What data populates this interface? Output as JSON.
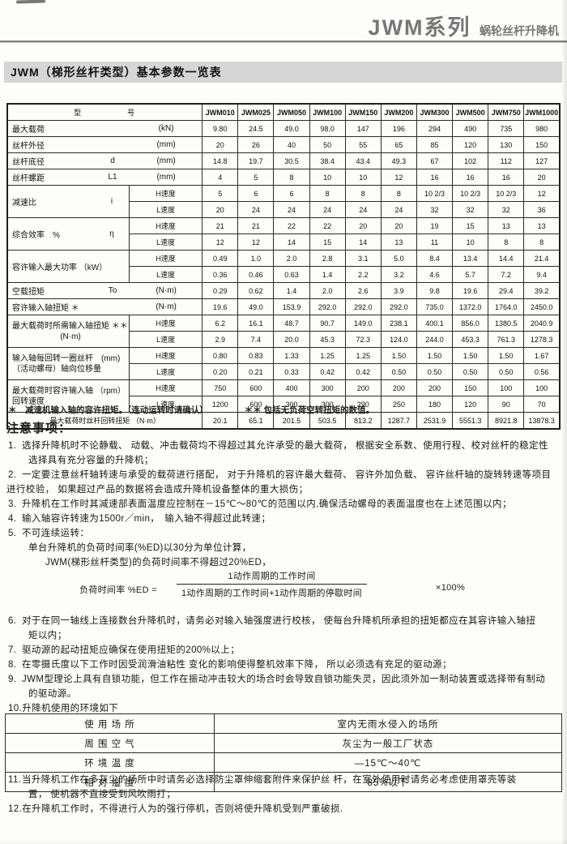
{
  "header": {
    "series": "JWM系列",
    "subtitle": "蜗轮丝杆升降机"
  },
  "section": {
    "title": "JWM（梯形丝杆类型）基本参数一览表"
  },
  "table": {
    "header_label": "型　　　　　号",
    "models": [
      "JWM010",
      "JWM025",
      "JWM050",
      "JWM100",
      "JWM150",
      "JWM200",
      "JWM300",
      "JWM500",
      "JWM750",
      "JWM1000"
    ],
    "speed_h": "H速度",
    "speed_l": "L速度",
    "rows": [
      {
        "type": "single",
        "label": "最大载荷",
        "sym": "",
        "unit": "(kN)",
        "values": [
          "9.80",
          "24.5",
          "49.0",
          "98.0",
          "147",
          "196",
          "294",
          "490",
          "735",
          "980"
        ]
      },
      {
        "type": "single",
        "label": "丝杆外径",
        "sym": "",
        "unit": "(mm)",
        "values": [
          "20",
          "26",
          "40",
          "50",
          "55",
          "65",
          "85",
          "120",
          "130",
          "150"
        ]
      },
      {
        "type": "single",
        "label": "丝杆底径",
        "sym": "d",
        "unit": "(mm)",
        "values": [
          "14.8",
          "19.7",
          "30.5",
          "38.4",
          "43.4",
          "49.3",
          "67",
          "102",
          "112",
          "127"
        ]
      },
      {
        "type": "single",
        "label": "丝杆螺距",
        "sym": "L1",
        "unit": "(mm)",
        "values": [
          "4",
          "5",
          "8",
          "10",
          "10",
          "12",
          "16",
          "16",
          "16",
          "20"
        ]
      },
      {
        "type": "hl",
        "label": "减速比",
        "sym": "i",
        "h": [
          "5",
          "6",
          "6",
          "8",
          "8",
          "8",
          "10 2/3",
          "10 2/3",
          "10 2/3",
          "12"
        ],
        "l": [
          "20",
          "24",
          "24",
          "24",
          "24",
          "24",
          "32",
          "32",
          "32",
          "36"
        ]
      },
      {
        "type": "hl",
        "label": "综合效率　%",
        "sym": "η",
        "h": [
          "21",
          "21",
          "22",
          "22",
          "20",
          "20",
          "19",
          "15",
          "13",
          "13"
        ],
        "l": [
          "12",
          "12",
          "14",
          "15",
          "14",
          "13",
          "11",
          "10",
          "8",
          "8"
        ]
      },
      {
        "type": "hl",
        "label": "容许输入最大功率 （kW）",
        "sym": "",
        "h": [
          "0.49",
          "1.0",
          "2.0",
          "2.8",
          "3.1",
          "5.0",
          "8.4",
          "13.4",
          "14.4",
          "21.4"
        ],
        "l": [
          "0.36",
          "0.46",
          "0.63",
          "1.4",
          "2.2",
          "3.2",
          "4.6",
          "5.7",
          "7.2",
          "9.4"
        ]
      },
      {
        "type": "single",
        "label": "空载扭矩",
        "sym": "To",
        "unit": "(N·m)",
        "values": [
          "0.29",
          "0.62",
          "1.4",
          "2.0",
          "2.6",
          "3.9",
          "9.8",
          "19.6",
          "29.4",
          "39.2"
        ]
      },
      {
        "type": "single",
        "label": "容许输入轴扭矩 ＊",
        "sym": "",
        "unit": "(N·m)",
        "values": [
          "19.6",
          "49.0",
          "153.9",
          "292.0",
          "292.0",
          "292.0",
          "735.0",
          "1372.0",
          "1764.0",
          "2450.0"
        ]
      },
      {
        "type": "hl2",
        "label1": "最大载荷时所需输入轴扭矩 ＊＊",
        "label2": "(N·m)",
        "l2center": true,
        "h": [
          "6.2",
          "16.1",
          "48.7",
          "90.7",
          "149.0",
          "238.1",
          "400.1",
          "856.0",
          "1380.5",
          "2040.9"
        ],
        "l": [
          "2.9",
          "7.4",
          "20.0",
          "45.3",
          "72.3",
          "124.0",
          "244.0",
          "453.3",
          "761.3",
          "1278.3"
        ]
      },
      {
        "type": "hl2",
        "label1": "输入轴每回转一圈丝杆　(mm)",
        "label2": "（活动螺母）轴向位移量",
        "l2center": false,
        "h": [
          "0.80",
          "0.83",
          "1.33",
          "1.25",
          "1.25",
          "1.50",
          "1.50",
          "1.50",
          "1.50",
          "1.67"
        ],
        "l": [
          "0.20",
          "0.21",
          "0.33",
          "0.42",
          "0.42",
          "0.50",
          "0.50",
          "0.50",
          "0.50",
          "0.56"
        ]
      },
      {
        "type": "hl2",
        "label1": "最大载荷时容许输入轴 （rpm）",
        "label2": "回转速度",
        "l2center": false,
        "h": [
          "750",
          "600",
          "400",
          "300",
          "200",
          "200",
          "200",
          "150",
          "100",
          "100"
        ],
        "l": [
          "1200",
          "600",
          "300",
          "300",
          "290",
          "250",
          "180",
          "120",
          "90",
          "70"
        ]
      },
      {
        "type": "full",
        "label": "最大载荷时丝杆回转扭矩 （N·m）",
        "values": [
          "20.1",
          "65.1",
          "201.5",
          "503.5",
          "813.2",
          "1287.7",
          "2531.9",
          "5551.3",
          "8921.8",
          "13878.3"
        ]
      }
    ],
    "footnote_star": "＊　减速机输入轴的容许扭矩。（连动运转时请确认）",
    "footnote_dstar": "＊＊ 包括无负荷空转扭矩的数值。"
  },
  "notes": {
    "title": "注意事项：",
    "items": [
      {
        "num": "1.",
        "lines": [
          "选择升降机时不论静载、 动载、冲击载荷均不得超过其允许承受的最大载荷， 根据安全系数、使用行程、校对丝杆的稳定性",
          "选择具有充分容量的升降机；"
        ]
      },
      {
        "num": "2.",
        "lines": [
          "一定要注意丝杆轴转速与承受的载荷进行搭配， 对于升降机的容许最大载荷、 容许外加负载、 容许丝杆轴的旋转转速等项目",
          "进行校验， 如果超过产品的数据将会造成升降机设备整体的重大损伤；"
        ]
      },
      {
        "num": "3.",
        "lines": [
          "升降机在工作时其减速部表面温度应控制在－15℃～80℃的范围以内,确保活动螺母的表面温度也在上述范围以内；"
        ]
      },
      {
        "num": "4.",
        "lines": [
          "输入轴容许转速为1500r／min，　输入轴不得超过此转速；"
        ]
      },
      {
        "num": "5.",
        "lines": [
          "不可连续运转：",
          "单台升降机的负荷时间率(%ED)以30分为单位计算，",
          "JWM(梯形丝杆类型)的负荷时间率不得超过20%ED，"
        ]
      },
      {
        "num": "6.",
        "lines": [
          "对于在同一轴线上连接数台升降机时，请务必对输入轴强度进行校核， 使每台升降机所承担的扭矩都应在其容许输入轴扭",
          "矩以内；"
        ]
      },
      {
        "num": "7.",
        "lines": [
          "驱动源的起动扭矩应确保在使用扭矩的200%以上；"
        ]
      },
      {
        "num": "8.",
        "lines": [
          "在零摄氏度以下工作时因受润滑油粘性 变化的影响使得整机效率下降， 所以必须选有充足的驱动源；"
        ]
      },
      {
        "num": "9.",
        "lines": [
          "JWM型理论上具有自锁功能，但工作在振动冲击较大的场合时会导致自锁功能失灵，因此须外加一制动装置或选择带有制动",
          "的驱动源。"
        ]
      },
      {
        "num": "10.",
        "lines": [
          "升降机使用的环境如下"
        ]
      },
      {
        "num": "11.",
        "lines": [
          "当升降机工作在多灰尘的场所中时请务必选择防尘罩伸缩套附件来保护丝 杆，在室外使用时请务必考虑使用罩壳等装",
          "置， 使机器不直接受到风吹雨打；"
        ]
      },
      {
        "num": "12.",
        "lines": [
          "在升降机工作时，不得进行人为的强行停机，否则将使升降机受到严重破损."
        ]
      }
    ]
  },
  "formula": {
    "lead": "负荷时间率 %ED =",
    "num": "1动作周期的工作时间",
    "den": "1动作周期的工作时间+1动作周期的停歇时间",
    "tail": "×100%"
  },
  "env": {
    "rows": [
      {
        "label": "使 用 场 所",
        "value": "室内无雨水侵入的场所"
      },
      {
        "label": "周 围 空 气",
        "value": "灰尘为一般工厂状态"
      },
      {
        "label": "环 境 温 度",
        "value": "—15℃～40℃"
      },
      {
        "label": "相 对 湿 度",
        "value": "85%以下"
      }
    ]
  }
}
